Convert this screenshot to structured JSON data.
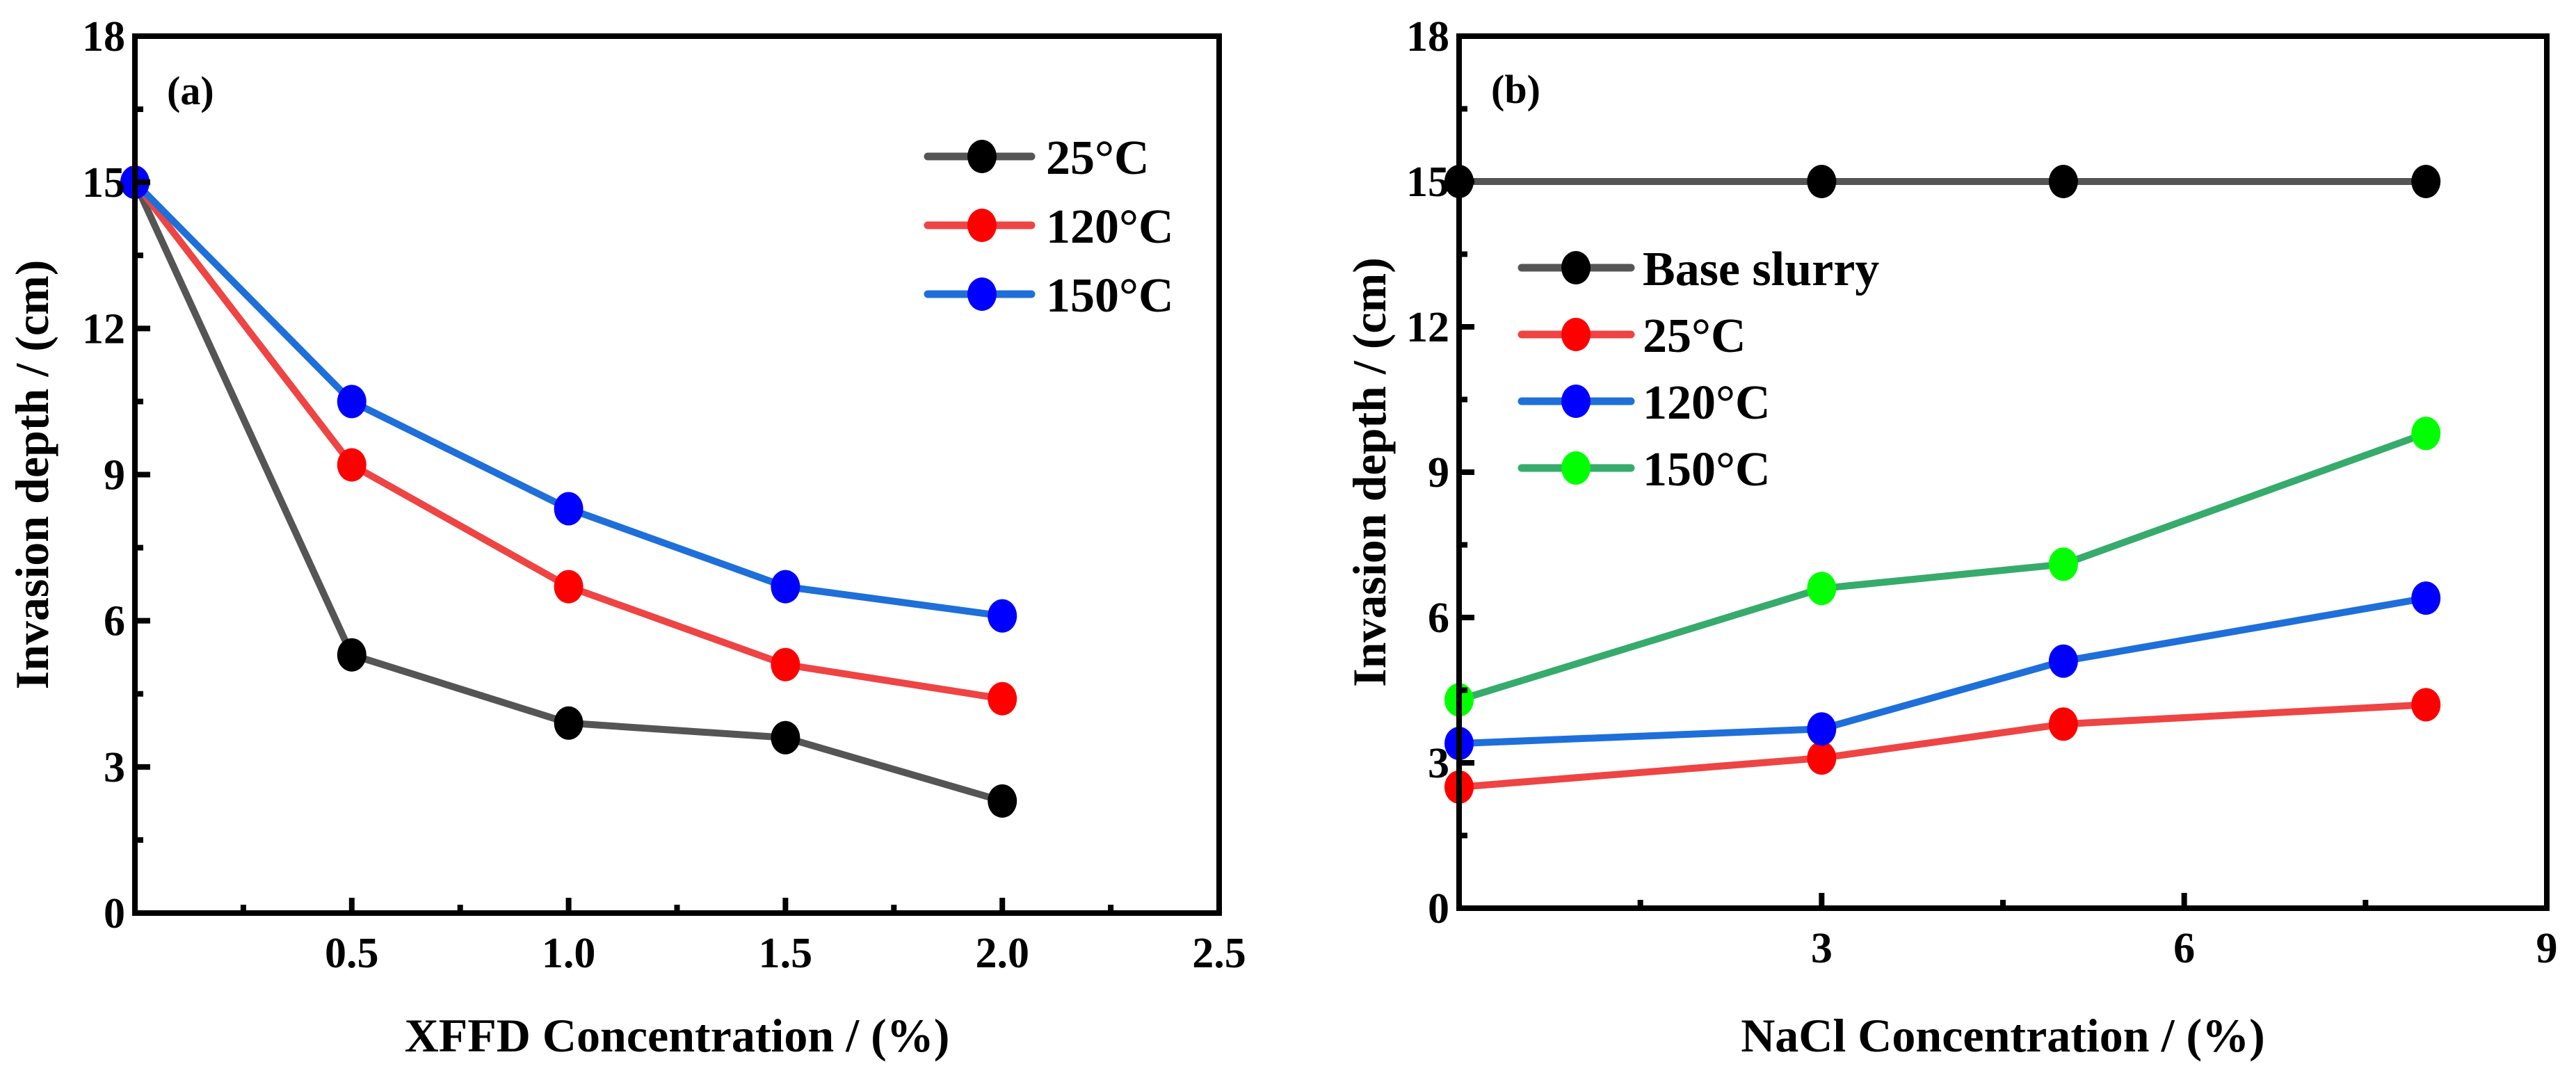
{
  "chart_data": [
    {
      "type": "line",
      "panel_label": "(a)",
      "xlabel": "XFFD Concentration / (%)",
      "ylabel": "Invasion depth / (cm)",
      "xlim": [
        0,
        2.5
      ],
      "ylim": [
        0,
        18
      ],
      "xticks": [
        0.5,
        1.0,
        1.5,
        2.0,
        2.5
      ],
      "xtick_labels": [
        "0.5",
        "1.0",
        "1.5",
        "2.0",
        "2.5"
      ],
      "xminor": 0.25,
      "yticks": [
        0,
        3,
        6,
        9,
        12,
        15,
        18
      ],
      "ytick_labels": [
        "0",
        "3",
        "6",
        "9",
        "12",
        "15",
        "18"
      ],
      "yminor": 1.5,
      "legend_position": "top-right",
      "x": [
        0,
        0.5,
        1.0,
        1.5,
        2.0
      ],
      "series": [
        {
          "name": "25°C",
          "values": [
            15,
            5.3,
            3.9,
            3.6,
            2.3
          ],
          "line_color": "#555555",
          "marker_color": "#000000"
        },
        {
          "name": "120°C",
          "values": [
            15,
            9.2,
            6.7,
            5.1,
            4.4
          ],
          "line_color": "#EE4444",
          "marker_color": "#FF0000"
        },
        {
          "name": "150°C",
          "values": [
            15,
            10.5,
            8.3,
            6.7,
            6.1
          ],
          "line_color": "#1E6FD9",
          "marker_color": "#0000FF"
        }
      ]
    },
    {
      "type": "line",
      "panel_label": "(b)",
      "xlabel": "NaCl Concentration / (%)",
      "ylabel": "Invasion depth / (cm)",
      "xlim": [
        0,
        9
      ],
      "ylim": [
        0,
        18
      ],
      "xticks": [
        3,
        6,
        9
      ],
      "xtick_labels": [
        "3",
        "6",
        "9"
      ],
      "xminor": 1.5,
      "yticks": [
        0,
        3,
        6,
        9,
        12,
        15,
        18
      ],
      "ytick_labels": [
        "0",
        "3",
        "6",
        "9",
        "12",
        "15",
        "18"
      ],
      "yminor": 1.5,
      "legend_position": "upper-left",
      "x": [
        0,
        3,
        5,
        8
      ],
      "series": [
        {
          "name": "Base slurry",
          "values": [
            15,
            15,
            15,
            15
          ],
          "line_color": "#555555",
          "marker_color": "#000000"
        },
        {
          "name": "25°C",
          "values": [
            2.5,
            3.1,
            3.8,
            4.2
          ],
          "line_color": "#EE4444",
          "marker_color": "#FF0000"
        },
        {
          "name": "120°C",
          "values": [
            3.4,
            3.7,
            5.1,
            6.4
          ],
          "line_color": "#1E6FD9",
          "marker_color": "#0000FF"
        },
        {
          "name": "150°C",
          "values": [
            4.3,
            6.6,
            7.1,
            9.8
          ],
          "line_color": "#36AB6B",
          "marker_color": "#00FF00"
        }
      ]
    }
  ]
}
